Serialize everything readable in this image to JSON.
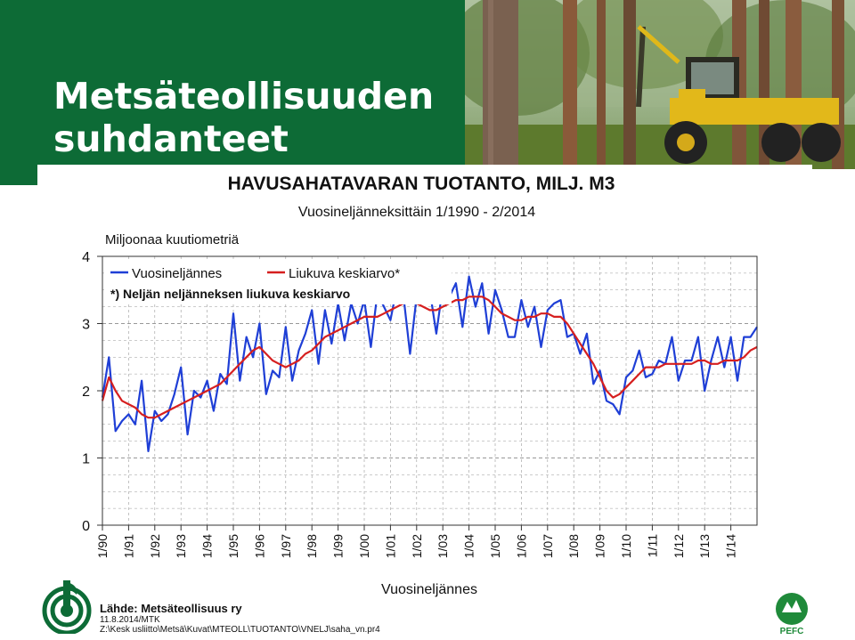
{
  "slide": {
    "title_line1": "Metsäteollisuuden",
    "title_line2": "suhdanteet"
  },
  "colors": {
    "header_green": "#0d6b36",
    "series_quarter": "#1f3fd6",
    "series_moving_avg": "#d61f1f"
  },
  "chart_data": {
    "type": "line",
    "title": "HAVUSAHATAVARAN TUOTANTO, MILJ. M3",
    "subtitle": "Vuosineljänneksittäin 1/1990 - 2/2014",
    "ylabel": "Miljoonaa kuutiometriä",
    "xlabel": "Vuosineljännes",
    "ylim": [
      0,
      4
    ],
    "yticks": [
      "0",
      "1",
      "2",
      "3",
      "4"
    ],
    "grid": true,
    "legend_position": "top-left",
    "x_tick_labels": [
      "1/90",
      "1/91",
      "1/92",
      "1/93",
      "1/94",
      "1/95",
      "1/96",
      "1/97",
      "1/98",
      "1/99",
      "1/00",
      "1/01",
      "1/02",
      "1/03",
      "1/04",
      "1/05",
      "1/06",
      "1/07",
      "1/08",
      "1/09",
      "1/10",
      "1/11",
      "1/12",
      "1/13",
      "1/14"
    ],
    "footnote": "*) Neljän neljänneksen liukuva keskiarvo",
    "series": [
      {
        "name": "Vuosineljännes",
        "color": "#1f3fd6",
        "values": [
          1.9,
          2.5,
          1.4,
          1.55,
          1.65,
          1.5,
          2.15,
          1.1,
          1.7,
          1.55,
          1.65,
          1.95,
          2.35,
          1.35,
          2.0,
          1.9,
          2.15,
          1.7,
          2.25,
          2.1,
          3.15,
          2.15,
          2.8,
          2.5,
          3.0,
          1.95,
          2.3,
          2.2,
          2.95,
          2.15,
          2.6,
          2.85,
          3.2,
          2.4,
          3.2,
          2.7,
          3.3,
          2.75,
          3.3,
          3.0,
          3.35,
          2.65,
          3.45,
          3.25,
          3.05,
          3.55,
          3.4,
          2.55,
          3.4,
          3.35,
          3.5,
          2.85,
          3.55,
          3.4,
          3.6,
          2.95,
          3.7,
          3.25,
          3.6,
          2.85,
          3.5,
          3.2,
          2.8,
          2.8,
          3.35,
          2.95,
          3.25,
          2.65,
          3.2,
          3.3,
          3.35,
          2.8,
          2.85,
          2.55,
          2.85,
          2.1,
          2.3,
          1.85,
          1.8,
          1.65,
          2.2,
          2.3,
          2.6,
          2.2,
          2.25,
          2.45,
          2.4,
          2.8,
          2.15,
          2.45,
          2.45,
          2.8,
          2.0,
          2.45,
          2.8,
          2.35,
          2.8,
          2.15,
          2.8,
          2.8,
          2.95
        ]
      },
      {
        "name": "Liukuva keskiarvo*",
        "color": "#d61f1f",
        "values": [
          1.85,
          2.2,
          2.0,
          1.85,
          1.8,
          1.75,
          1.65,
          1.6,
          1.6,
          1.65,
          1.7,
          1.75,
          1.8,
          1.85,
          1.9,
          1.95,
          2.0,
          2.05,
          2.1,
          2.2,
          2.3,
          2.4,
          2.5,
          2.6,
          2.65,
          2.55,
          2.45,
          2.4,
          2.35,
          2.4,
          2.45,
          2.55,
          2.6,
          2.7,
          2.8,
          2.85,
          2.9,
          2.95,
          3.0,
          3.05,
          3.1,
          3.1,
          3.1,
          3.15,
          3.2,
          3.25,
          3.3,
          3.3,
          3.3,
          3.25,
          3.2,
          3.2,
          3.25,
          3.3,
          3.35,
          3.35,
          3.4,
          3.4,
          3.4,
          3.35,
          3.25,
          3.15,
          3.1,
          3.05,
          3.05,
          3.1,
          3.1,
          3.15,
          3.15,
          3.1,
          3.1,
          3.0,
          2.85,
          2.7,
          2.55,
          2.4,
          2.2,
          2.0,
          1.9,
          1.95,
          2.05,
          2.15,
          2.25,
          2.35,
          2.35,
          2.35,
          2.4,
          2.4,
          2.4,
          2.4,
          2.4,
          2.45,
          2.45,
          2.4,
          2.4,
          2.45,
          2.45,
          2.45,
          2.5,
          2.6,
          2.65
        ]
      }
    ]
  },
  "footer": {
    "source_title": "Lähde: Metsäteollisuus ry",
    "source_date": "11.8.2014/MTK",
    "source_path": "Z:\\Kesk usliitto\\Metsä\\Kuvat\\MTEOLL\\TUOTANTO\\VNELJ\\saha_vn.pr4",
    "right_logo_text": "PEFC"
  }
}
